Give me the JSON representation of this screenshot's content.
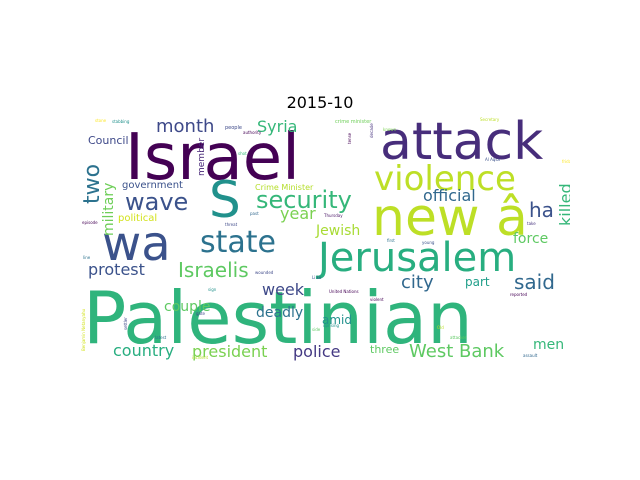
{
  "title": "2015-10",
  "words": [
    {
      "text": "Palestinian",
      "color": "#2fb47c"
    },
    {
      "text": "Israel",
      "color": "#440154"
    },
    {
      "text": "new â",
      "color": "#bddf26"
    },
    {
      "text": "attack",
      "color": "#472d7b"
    },
    {
      "text": "wa",
      "color": "#3b528b"
    },
    {
      "text": "S",
      "color": "#21918c"
    },
    {
      "text": "Jerusalem",
      "color": "#28ae80"
    },
    {
      "text": "violence",
      "color": "#bddf26"
    },
    {
      "text": "state",
      "color": "#2c728e"
    },
    {
      "text": "security",
      "color": "#35b779"
    },
    {
      "text": "wave",
      "color": "#3b528b"
    },
    {
      "text": "two",
      "color": "#2c728e"
    },
    {
      "text": "month",
      "color": "#3e4989"
    },
    {
      "text": "Syria",
      "color": "#35b779"
    },
    {
      "text": "Israelis",
      "color": "#5ec962"
    },
    {
      "text": "protest",
      "color": "#3b528b"
    },
    {
      "text": "West Bank",
      "color": "#5ec962"
    },
    {
      "text": "said",
      "color": "#31688e"
    },
    {
      "text": "city",
      "color": "#31688e"
    },
    {
      "text": "police",
      "color": "#443983"
    },
    {
      "text": "president",
      "color": "#7ad151"
    },
    {
      "text": "country",
      "color": "#28ae80"
    },
    {
      "text": "official",
      "color": "#31688e"
    },
    {
      "text": "ha",
      "color": "#3b528b"
    },
    {
      "text": "killed",
      "color": "#35b779"
    },
    {
      "text": "force",
      "color": "#5ec962"
    },
    {
      "text": "military",
      "color": "#6ece58"
    },
    {
      "text": "year",
      "color": "#7ad151"
    },
    {
      "text": "Jewish",
      "color": "#a8db34"
    },
    {
      "text": "week",
      "color": "#3e4989"
    },
    {
      "text": "deadly",
      "color": "#2c728e"
    },
    {
      "text": "part",
      "color": "#1f9e89"
    },
    {
      "text": "men",
      "color": "#35b779"
    },
    {
      "text": "amid",
      "color": "#21918c"
    },
    {
      "text": "Council",
      "color": "#3e4989"
    },
    {
      "text": "government",
      "color": "#3b528b"
    },
    {
      "text": "couple",
      "color": "#5ec962"
    },
    {
      "text": "political",
      "color": "#d2e21b"
    },
    {
      "text": "three",
      "color": "#5ec962"
    },
    {
      "text": "member",
      "color": "#482878"
    },
    {
      "text": "Crime Minister",
      "color": "#b5de2b"
    },
    {
      "text": "people",
      "color": "#3e4989"
    },
    {
      "text": "authority",
      "color": "#440154"
    },
    {
      "text": "crime minister",
      "color": "#6ece58"
    },
    {
      "text": "Secretary",
      "color": "#bddf26"
    },
    {
      "text": "Al Aqsa",
      "color": "#3b528b"
    },
    {
      "text": "United Nations",
      "color": "#440154"
    },
    {
      "text": "wounded",
      "color": "#3e4989"
    },
    {
      "text": "attacker",
      "color": "#5ec962"
    },
    {
      "text": "latest",
      "color": "#2c728e"
    },
    {
      "text": "stabbing",
      "color": "#21918c"
    },
    {
      "text": "episode",
      "color": "#440154"
    },
    {
      "text": "Thursday",
      "color": "#471365"
    },
    {
      "text": "past",
      "color": "#31688e"
    },
    {
      "text": "young",
      "color": "#3b528b"
    },
    {
      "text": "first",
      "color": "#2c728e"
    },
    {
      "text": "shot",
      "color": "#35b779"
    },
    {
      "text": "violent",
      "color": "#440154"
    },
    {
      "text": "uprising",
      "color": "#21918c"
    },
    {
      "text": "reported",
      "color": "#440154"
    },
    {
      "text": "assault",
      "color": "#31688e"
    },
    {
      "text": "Benjamin Netanyahu",
      "color": "#d2e21b"
    },
    {
      "text": "incident",
      "color": "#b5de2b"
    },
    {
      "text": "settler",
      "color": "#3e4989"
    },
    {
      "text": "take",
      "color": "#46327e"
    },
    {
      "text": "Li ke",
      "color": "#3b528b"
    },
    {
      "text": "gate",
      "color": "#3e4989"
    },
    {
      "text": "side",
      "color": "#5ec962"
    },
    {
      "text": "Old",
      "color": "#bddf26"
    },
    {
      "text": "tense",
      "color": "#440154"
    },
    {
      "text": "line",
      "color": "#2c728e"
    },
    {
      "text": "sign",
      "color": "#21918c"
    },
    {
      "text": "threat",
      "color": "#3e4989"
    },
    {
      "text": "known",
      "color": "#7ad151"
    },
    {
      "text": "decade",
      "color": "#46327e"
    },
    {
      "text": "stone",
      "color": "#fde725"
    },
    {
      "text": "friday",
      "color": "#fde725"
    }
  ]
}
